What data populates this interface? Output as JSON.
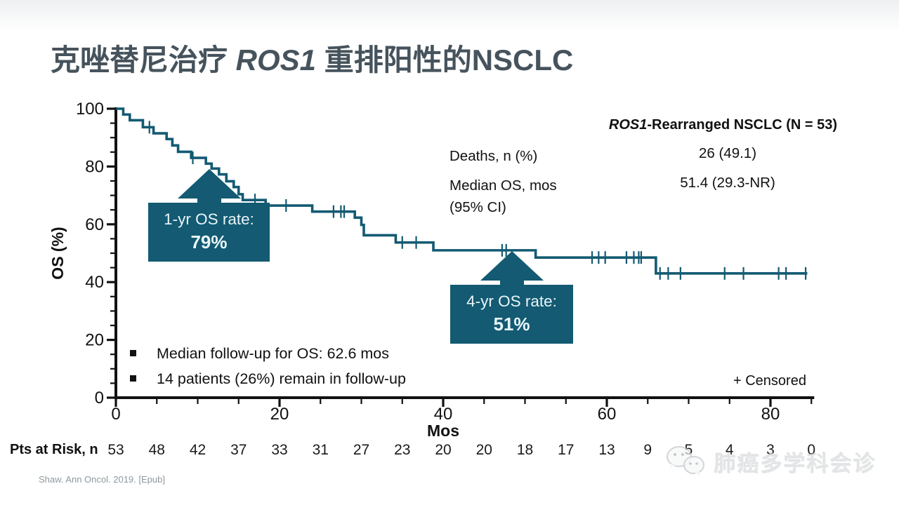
{
  "slide": {
    "title": {
      "prefix": "克唑替尼治疗 ",
      "gene": "ROS1",
      "suffix": " 重排阳性的NSCLC"
    },
    "citation": "Shaw. Ann Oncol. 2019. [Epub]",
    "watermark_text": "肺癌多学科会诊"
  },
  "colors": {
    "accent_teal": "#135a72",
    "title_slate": "#46535c",
    "axis_black": "#111111",
    "citation_gray": "#8e989e"
  },
  "stats_table": {
    "header": {
      "gene": "ROS1",
      "rest": "-Rearranged NSCLC (N = 53)"
    },
    "rows": [
      {
        "label": "Deaths, n (%)",
        "label2": "",
        "value": "26 (49.1)"
      },
      {
        "label": "Median OS, mos",
        "label2": "(95% CI)",
        "value": "51.4 (29.3-NR)"
      }
    ]
  },
  "callouts": [
    {
      "line1": "1-yr OS rate:",
      "value": "79%"
    },
    {
      "line1": "4-yr OS rate:",
      "value": "51%"
    }
  ],
  "bullets": [
    "Median follow-up for OS: 62.6 mos",
    "14 patients (26%) remain in follow-up"
  ],
  "chart_data": {
    "type": "line",
    "subtype": "kaplan-meier-step",
    "title": "",
    "xlabel": "Mos",
    "ylabel": "OS (%)",
    "xlim": [
      0,
      85
    ],
    "ylim": [
      0,
      100
    ],
    "x_major_ticks": [
      0,
      20,
      40,
      60,
      80
    ],
    "x_minor_step": 5,
    "y_major_ticks": [
      0,
      20,
      40,
      60,
      80,
      100
    ],
    "y_minor_step": 5,
    "grid": false,
    "legend": "+ Censored",
    "series": [
      {
        "name": "ROS1-rearranged NSCLC overall survival",
        "step_points": [
          [
            0,
            100
          ],
          [
            0.9,
            98
          ],
          [
            1.7,
            96
          ],
          [
            3.3,
            93.6
          ],
          [
            4.6,
            91.5
          ],
          [
            6.2,
            89.5
          ],
          [
            6.9,
            87.3
          ],
          [
            7.6,
            85.1
          ],
          [
            9.2,
            83
          ],
          [
            11,
            81
          ],
          [
            11.7,
            79.3
          ],
          [
            12.6,
            77.3
          ],
          [
            13.5,
            74.9
          ],
          [
            14.4,
            72.9
          ],
          [
            15,
            70.4
          ],
          [
            15.5,
            68.4
          ],
          [
            18.3,
            66.5
          ],
          [
            24,
            64.4
          ],
          [
            29.2,
            62.3
          ],
          [
            30,
            59.8
          ],
          [
            30.3,
            56.2
          ],
          [
            34.2,
            53.7
          ],
          [
            38.8,
            51
          ],
          [
            51.3,
            48.5
          ],
          [
            66,
            43
          ]
        ],
        "end_x": 84.5
      }
    ],
    "censor_marks": [
      [
        4.1,
        93.6
      ],
      [
        9.4,
        83
      ],
      [
        17,
        68.4
      ],
      [
        20.8,
        66.5
      ],
      [
        26.6,
        64.4
      ],
      [
        27.5,
        64.4
      ],
      [
        27.9,
        64.4
      ],
      [
        35,
        53.7
      ],
      [
        36.7,
        53.7
      ],
      [
        47.2,
        51
      ],
      [
        47.7,
        51
      ],
      [
        58.2,
        48.5
      ],
      [
        59,
        48.5
      ],
      [
        59.8,
        48.5
      ],
      [
        62.4,
        48.5
      ],
      [
        63.3,
        48.5
      ],
      [
        63.9,
        48.5
      ],
      [
        64.2,
        48.5
      ],
      [
        66.5,
        43
      ],
      [
        67.5,
        43
      ],
      [
        69,
        43
      ],
      [
        74.4,
        43
      ],
      [
        76.7,
        43
      ],
      [
        81,
        43
      ],
      [
        81.9,
        43
      ],
      [
        84.3,
        43
      ]
    ],
    "annotations": [
      {
        "text": "1-yr OS rate: 79%",
        "x": 12,
        "y": 79
      },
      {
        "text": "4-yr OS rate: 51%",
        "x": 48,
        "y": 51
      }
    ]
  },
  "pts_at_risk": {
    "label": "Pts at Risk, n",
    "months": [
      0,
      5,
      10,
      15,
      20,
      25,
      30,
      35,
      40,
      45,
      50,
      55,
      60,
      65,
      70,
      75,
      80,
      85
    ],
    "values": [
      53,
      48,
      42,
      37,
      33,
      31,
      27,
      23,
      20,
      20,
      18,
      17,
      13,
      9,
      5,
      4,
      3,
      0
    ]
  }
}
